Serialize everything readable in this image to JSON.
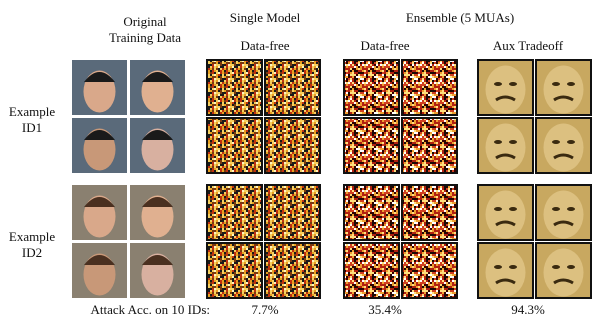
{
  "header": {
    "original": "Original Training Data",
    "single_model": "Single Model",
    "ensemble": "Ensemble (5 MUAs)"
  },
  "subheaders": [
    "Data-free",
    "Data-free",
    "Aux Tradeoff"
  ],
  "rows": [
    "Example ID1",
    "Example ID2"
  ],
  "footer": {
    "label": "Attack Acc. on 10 IDs:",
    "values": [
      "7.7%",
      "35.4%",
      "94.3%"
    ]
  }
}
